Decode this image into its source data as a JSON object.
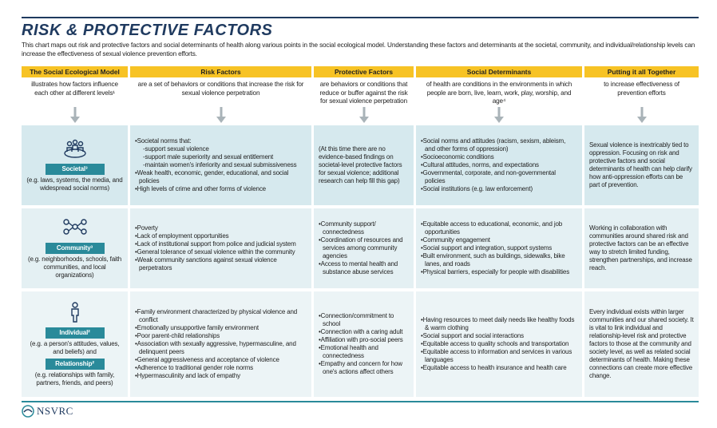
{
  "header": {
    "title": "RISK & PROTECTIVE FACTORS",
    "intro": "This chart maps out risk and protective factors and social determinants of health along various points in the social ecological model. Understanding these factors and determinants at the societal, community, and individual/relationship levels can increase the effectiveness of sexual violence prevention efforts."
  },
  "columns": [
    {
      "heading": "The Social Ecological Model",
      "description": "illustrates how factors influence each other at different levels¹"
    },
    {
      "heading": "Risk Factors",
      "description": "are a set of behaviors or conditions that increase the risk for sexual violence perpetration"
    },
    {
      "heading": "Protective Factors",
      "description": "are behaviors or conditions that reduce or buffer against the risk for sexual violence perpetration"
    },
    {
      "heading": "Social Determinants",
      "description": "of health are conditions in the environments in which people are born, live, learn, work, play, worship, and age⁴"
    },
    {
      "heading": "Putting it all Together",
      "description": "to increase effectiveness of prevention efforts"
    }
  ],
  "rows": [
    {
      "levels": [
        {
          "label": "Societal³",
          "example": "(e.g. laws, systems, the media, and widespread social norms)"
        }
      ],
      "risk": [
        {
          "text": "Societal norms that:",
          "subitems": [
            "-support sexual violence",
            "-support male superiority and sexual entitlement",
            "-maintain women's inferiority and sexual submissiveness"
          ]
        },
        {
          "text": "Weak health, economic, gender, educational, and social policies"
        },
        {
          "text": "High levels of crime and other forms of violence"
        }
      ],
      "protective_note": "(At this time there are no evidence-based findings on societal-level protective factors for sexual violence; additional research can help fill this gap)",
      "determinants": [
        "Social norms and attitudes (racism, sexism, ableism, and other forms of oppression)",
        "Socioeconomic conditions",
        "Cultural attitudes, norms, and expectations",
        "Governmental, corporate, and non-governmental policies",
        "Social institutions (e.g. law enforcement)"
      ],
      "together": "Sexual violence is inextricably tied to oppression. Focusing on risk and protective factors and social determinants of health can help clarify how anti-oppression efforts can be part of prevention."
    },
    {
      "levels": [
        {
          "label": "Community³",
          "example": "(e.g. neighborhoods, schools, faith communities, and local organizations)"
        }
      ],
      "risk": [
        {
          "text": "Poverty"
        },
        {
          "text": "Lack of employment opportunities"
        },
        {
          "text": "Lack of institutional support from police and judicial system"
        },
        {
          "text": "General tolerance of sexual violence within the community"
        },
        {
          "text": "Weak community sanctions against sexual violence perpetrators"
        }
      ],
      "protective": [
        "Community support/ connectedness",
        "Coordination of resources and services among community agencies",
        "Access to mental health and substance abuse services"
      ],
      "determinants": [
        "Equitable access to educational, economic, and job opportunities",
        "Community engagement",
        "Social support and integration, support systems",
        "Built environment, such as buildings, sidewalks, bike lanes, and roads",
        "Physical barriers, especially for people with disabilities"
      ],
      "together": "Working in collaboration with communities around shared risk and protective factors can be an effective way to stretch limited funding, strengthen partnerships, and increase reach."
    },
    {
      "levels": [
        {
          "label": "Individual²",
          "example": "(e.g. a person's attitudes, values, and beliefs) and"
        },
        {
          "label": "Relationship²",
          "example": "(e.g. relationships with family, partners, friends, and peers)"
        }
      ],
      "risk": [
        {
          "text": "Family environment characterized by physical violence and conflict"
        },
        {
          "text": "Emotionally unsupportive family environment"
        },
        {
          "text": "Poor parent-child relationships"
        },
        {
          "text": "Association with sexually aggressive, hypermasculine, and delinquent peers"
        },
        {
          "text": "General aggressiveness and acceptance of violence"
        },
        {
          "text": "Adherence to traditional gender role norms"
        },
        {
          "text": "Hypermasculinity and lack of empathy"
        }
      ],
      "protective": [
        "Connection/commitment to school",
        "Connection with a caring adult",
        "Affiliation with pro-social peers",
        "Emotional health and connectedness",
        "Empathy and concern for how one's actions affect others"
      ],
      "determinants": [
        "Having resources to meet daily needs like healthy foods & warm clothing",
        "Social support and social interactions",
        "Equitable access to quality schools and transportation",
        "Equitable access to information and services in various languages",
        "Equitable access to health insurance and health care"
      ],
      "together": "Every individual exists within larger communities and our shared society. It is vital to link individual and relationship-level risk and protective factors to those at the community and society level, as well as related social determinants of health. Making these connections can create more effective change."
    }
  ],
  "footer": {
    "logo": "NSVRC"
  }
}
